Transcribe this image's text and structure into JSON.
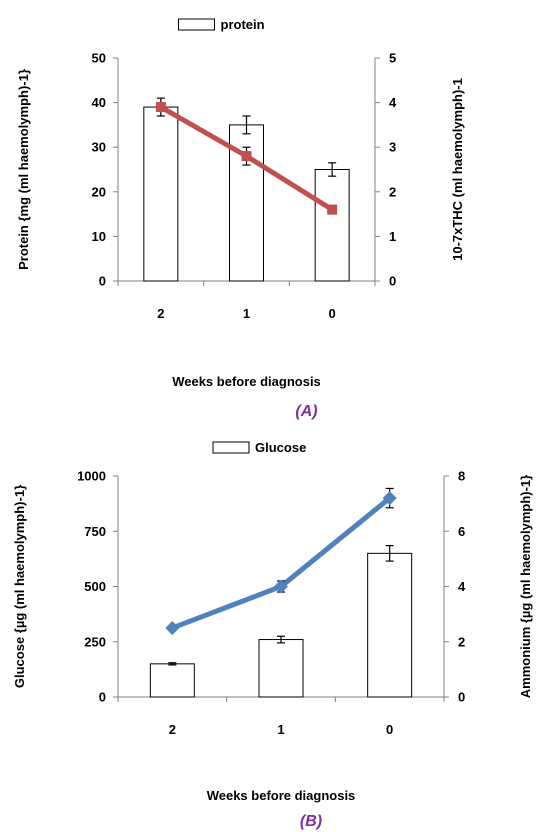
{
  "chart_data": [
    {
      "panel_label": "(A)",
      "type": "bar+line",
      "categories": [
        "2",
        "1",
        "0"
      ],
      "xlabel": "Weeks before diagnosis",
      "ylabel": "Protein {mg (ml haemolymph)-1}",
      "ylabel_right": "10-7xTHC (ml haemolymph)-1",
      "ylim": [
        0,
        50
      ],
      "yticks": [
        0,
        10,
        20,
        30,
        40,
        50
      ],
      "ylim_right": [
        0,
        5
      ],
      "yticks_right": [
        0,
        1,
        2,
        3,
        4,
        5
      ],
      "legend": {
        "label": "protein",
        "position": "top-center"
      },
      "bars": {
        "name": "protein",
        "values": [
          39,
          35,
          25
        ],
        "errors": [
          2,
          2,
          1.5
        ]
      },
      "line": {
        "axis": "right",
        "color": "#c0504d",
        "marker": "square",
        "values": [
          3.9,
          2.8,
          1.6
        ],
        "errors": [
          0,
          0.2,
          0
        ]
      },
      "grid": false
    },
    {
      "panel_label": "(B)",
      "type": "bar+line",
      "categories": [
        "2",
        "1",
        "0"
      ],
      "xlabel": "Weeks before diagnosis",
      "ylabel": "Glucose {µg (ml haemolymph)-1}",
      "ylabel_right": "Ammonium {µg (ml haemolymph)-1}",
      "ylim": [
        0,
        1000
      ],
      "yticks": [
        0,
        250,
        500,
        750,
        1000
      ],
      "ylim_right": [
        0,
        8
      ],
      "yticks_right": [
        0,
        2,
        4,
        6,
        8
      ],
      "legend": {
        "label": "Glucose",
        "position": "top-center"
      },
      "bars": {
        "name": "Glucose",
        "values": [
          150,
          260,
          650
        ],
        "errors": [
          5,
          15,
          35
        ]
      },
      "line": {
        "axis": "right",
        "color": "#4f81bd",
        "marker": "diamond",
        "values": [
          2.5,
          4.0,
          7.2
        ],
        "errors": [
          0,
          0.2,
          0.35
        ]
      },
      "grid": false
    }
  ]
}
